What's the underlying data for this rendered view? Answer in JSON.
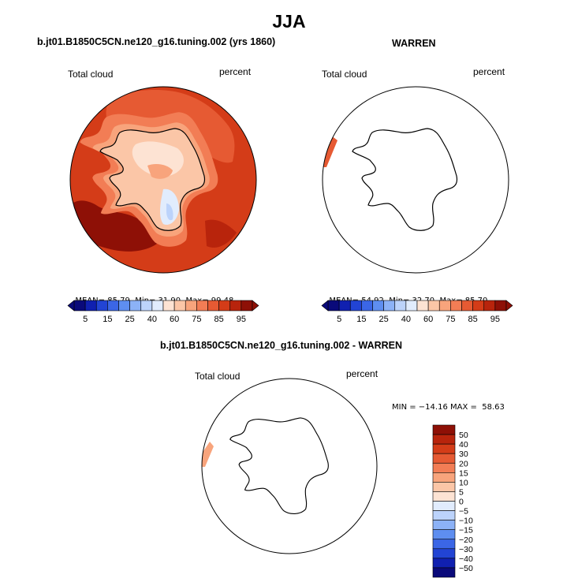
{
  "page": {
    "season": "JJA",
    "case_name": "b.jt01.B1850C5CN.ne120_g16.tuning.002 (yrs 1860)",
    "obs_name": "WARREN",
    "diff_title": "b.jt01.B1850C5CN.ne120_g16.tuning.002 - WARREN"
  },
  "chart_data": [
    {
      "type": "polar-contour-map",
      "panel": "model",
      "variable": "Total cloud",
      "units": "percent",
      "projection": "south-polar stereographic",
      "stats": {
        "mean_label": "MEAN=",
        "mean": "85.79",
        "min_label": "Min=",
        "min": "31.90",
        "max_label": "Max=",
        "max": "99.48"
      },
      "colorbar_labels": [
        "5",
        "15",
        "25",
        "40",
        "60",
        "75",
        "85",
        "95"
      ],
      "colorbar_colors": [
        "#0a0a7a",
        "#1020b0",
        "#2244d4",
        "#3b66e6",
        "#5e8ef0",
        "#8cb2f7",
        "#bcd3fb",
        "#e1ecfd",
        "#fde3d3",
        "#fbc6a7",
        "#f8a47c",
        "#f27d55",
        "#e65a33",
        "#d43c18",
        "#b8240c",
        "#8e1006"
      ],
      "dominant_value_range": [
        85,
        95
      ]
    },
    {
      "type": "polar-contour-map",
      "panel": "observations",
      "variable": "Total cloud",
      "units": "percent",
      "projection": "south-polar stereographic",
      "stats": {
        "mean_label": "MEAN=",
        "mean": "54.92",
        "min_label": "Min=",
        "min": "32.70",
        "max_label": "Max=",
        "max": "85.70"
      },
      "colorbar_labels": [
        "5",
        "15",
        "25",
        "40",
        "60",
        "75",
        "85",
        "95"
      ]
    },
    {
      "type": "polar-contour-map",
      "panel": "difference",
      "variable": "Total cloud",
      "units": "percent",
      "projection": "south-polar stereographic",
      "stats_text": "MIN = −14.16 MAX =  58.63",
      "stats": {
        "min": -14.16,
        "max": 58.63
      },
      "colorbar_labels": [
        "50",
        "40",
        "30",
        "20",
        "15",
        "10",
        "5",
        "0",
        "−5",
        "−10",
        "−15",
        "−20",
        "−30",
        "−40",
        "−50"
      ],
      "colorbar_colors": [
        "#8e1006",
        "#b8240c",
        "#d43c18",
        "#e65a33",
        "#f27d55",
        "#f8a47c",
        "#fbc6a7",
        "#fde3d3",
        "#e1ecfd",
        "#bcd3fb",
        "#8cb2f7",
        "#5e8ef0",
        "#3b66e6",
        "#2244d4",
        "#1020b0",
        "#0a0a7a"
      ]
    }
  ]
}
